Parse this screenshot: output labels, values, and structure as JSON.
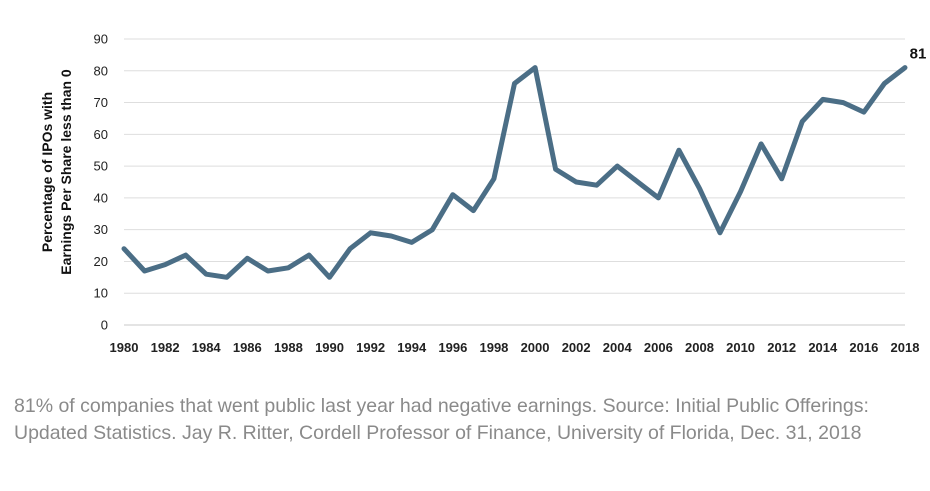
{
  "chart_data": {
    "type": "line",
    "ylabel": [
      "Percentage of IPOs with",
      "Earnings Per Share less than 0"
    ],
    "xlabel": "",
    "ylim": [
      0,
      90
    ],
    "yticks": [
      0,
      10,
      20,
      30,
      40,
      50,
      60,
      70,
      80,
      90
    ],
    "xlim": [
      1980,
      2018
    ],
    "xticks": [
      1980,
      1982,
      1984,
      1986,
      1988,
      1990,
      1992,
      1994,
      1996,
      1998,
      2000,
      2002,
      2004,
      2006,
      2008,
      2010,
      2012,
      2014,
      2016,
      2018
    ],
    "grid": "horizontal",
    "line_color": "#4b6e86",
    "x": [
      1980,
      1981,
      1982,
      1983,
      1984,
      1985,
      1986,
      1987,
      1988,
      1989,
      1990,
      1991,
      1992,
      1993,
      1994,
      1995,
      1996,
      1997,
      1998,
      1999,
      2000,
      2001,
      2002,
      2003,
      2004,
      2005,
      2006,
      2007,
      2008,
      2009,
      2010,
      2011,
      2012,
      2013,
      2014,
      2015,
      2016,
      2017,
      2018
    ],
    "y": [
      24,
      17,
      19,
      22,
      16,
      15,
      21,
      17,
      18,
      22,
      15,
      24,
      29,
      28,
      26,
      30,
      41,
      36,
      46,
      76,
      81,
      49,
      45,
      44,
      50,
      45,
      40,
      55,
      43,
      29,
      42,
      57,
      46,
      64,
      71,
      70,
      67,
      76,
      81
    ],
    "data_labels": [
      {
        "x": 2018,
        "text": "81"
      }
    ]
  },
  "caption": "81% of companies that went public last year had negative earnings. Source: Initial Public Offerings: Updated Statistics. Jay R. Ritter, Cordell Professor of Finance, University of Florida, Dec. 31, 2018"
}
